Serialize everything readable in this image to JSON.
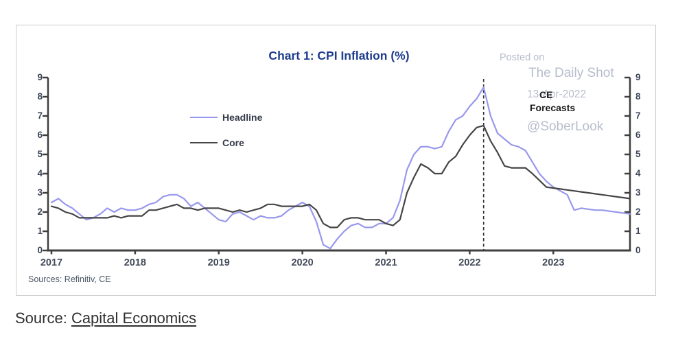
{
  "chart": {
    "title": "Chart 1: CPI Inflation (%)",
    "sources_note": "Sources: Refinitiv, CE",
    "annotation": {
      "line1": "CE",
      "line2": "Forecasts"
    },
    "watermark": {
      "posted_on": "Posted on",
      "site": "The Daily Shot",
      "date": "13-Apr-2022",
      "handle": "@SoberLook"
    }
  },
  "footer": {
    "prefix": "Source: ",
    "link_text": "Capital Economics"
  },
  "colors": {
    "headline": "#9898ec",
    "core": "#454545",
    "axis": "#3f3f3f",
    "dashed_line": "#333333",
    "title": "#1e3d8d",
    "watermark": "#b7bdcb"
  },
  "chart_data": {
    "type": "line",
    "title": "Chart 1: CPI Inflation (%)",
    "x_start": "2017-01",
    "x_end": "2023-12",
    "xticks": [
      "2017",
      "2018",
      "2019",
      "2020",
      "2021",
      "2022",
      "2023"
    ],
    "yticks": [
      "0",
      "1",
      "2",
      "3",
      "4",
      "5",
      "6",
      "7",
      "8",
      "9"
    ],
    "ylim": [
      0,
      9
    ],
    "y_axis_sides": "both",
    "grid": false,
    "legend_position": "upper-left-inside",
    "forecast_divider_month_index": 62,
    "forecast_divider_label": "CE Forecasts (dashed vertical line at Mar-2022)",
    "series": [
      {
        "name": "Headline",
        "color_key": "headline",
        "values": [
          2.5,
          2.7,
          2.4,
          2.2,
          1.9,
          1.6,
          1.7,
          1.9,
          2.2,
          2.0,
          2.2,
          2.1,
          2.1,
          2.2,
          2.4,
          2.5,
          2.8,
          2.9,
          2.9,
          2.7,
          2.3,
          2.5,
          2.2,
          1.9,
          1.6,
          1.5,
          1.9,
          2.0,
          1.8,
          1.6,
          1.8,
          1.7,
          1.7,
          1.8,
          2.1,
          2.3,
          2.5,
          2.3,
          1.5,
          0.3,
          0.1,
          0.6,
          1.0,
          1.3,
          1.4,
          1.2,
          1.2,
          1.4,
          1.4,
          1.7,
          2.6,
          4.2,
          5.0,
          5.4,
          5.4,
          5.3,
          5.4,
          6.2,
          6.8,
          7.0,
          7.5,
          7.9,
          8.5,
          7.0,
          6.1,
          5.8,
          5.5,
          5.4,
          5.2,
          4.6,
          4.0,
          3.6,
          3.3,
          3.1,
          2.9,
          2.1,
          2.2,
          2.15,
          2.1,
          2.1,
          2.05,
          2.0,
          1.95,
          1.9
        ]
      },
      {
        "name": "Core",
        "color_key": "core",
        "values": [
          2.3,
          2.2,
          2.0,
          1.9,
          1.7,
          1.7,
          1.7,
          1.7,
          1.7,
          1.8,
          1.7,
          1.8,
          1.8,
          1.8,
          2.1,
          2.1,
          2.2,
          2.3,
          2.4,
          2.2,
          2.2,
          2.1,
          2.2,
          2.2,
          2.2,
          2.1,
          2.0,
          2.1,
          2.0,
          2.1,
          2.2,
          2.4,
          2.4,
          2.3,
          2.3,
          2.3,
          2.3,
          2.4,
          2.1,
          1.4,
          1.2,
          1.2,
          1.6,
          1.7,
          1.7,
          1.6,
          1.6,
          1.6,
          1.4,
          1.3,
          1.6,
          3.0,
          3.8,
          4.5,
          4.3,
          4.0,
          4.0,
          4.6,
          4.9,
          5.5,
          6.0,
          6.4,
          6.5,
          5.7,
          5.1,
          4.4,
          4.3,
          4.3,
          4.3,
          4.0,
          3.65,
          3.3,
          3.25,
          3.2,
          3.15,
          3.1,
          3.05,
          3.0,
          2.95,
          2.9,
          2.85,
          2.8,
          2.75,
          2.7
        ]
      }
    ]
  }
}
